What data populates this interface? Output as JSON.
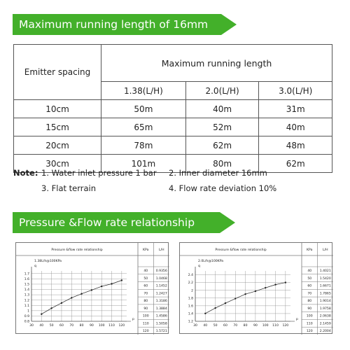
{
  "section1": {
    "title": "Maximum running length of 16mm",
    "table": {
      "spacing_header": "Emitter spacing",
      "group_header": "Maximum running length",
      "flow_headers": [
        "1.38(L/H)",
        "2.0(L/H)",
        "3.0(L/H)"
      ],
      "rows": [
        {
          "spacing": "10cm",
          "values": [
            "50m",
            "40m",
            "31m"
          ]
        },
        {
          "spacing": "15cm",
          "values": [
            "65m",
            "52m",
            "40m"
          ]
        },
        {
          "spacing": "20cm",
          "values": [
            "78m",
            "62m",
            "48m"
          ]
        },
        {
          "spacing": "30cm",
          "values": [
            "101m",
            "80m",
            "62m"
          ]
        }
      ]
    },
    "notes": {
      "label": "Note:",
      "items": [
        "1. Water inlet pressure 1 bar",
        "2. Inner diameter 16mm",
        "3. Flat terrain",
        "4. Flow rate deviation 10%"
      ]
    }
  },
  "section2": {
    "title": "Pressure &Flow rate relationship chart"
  },
  "colors": {
    "banner_green": "#43b02a",
    "line": "#222222"
  },
  "chart_data": [
    {
      "type": "line",
      "title": "Pressure &flow rate relationship",
      "subtitle": "1.38L/h@100KPa",
      "xlabel": "",
      "ylabel": "q",
      "x_axis_end_label": "p",
      "x_ticks": [
        "30",
        "40",
        "50",
        "60",
        "70",
        "80",
        "90",
        "100",
        "110",
        "120"
      ],
      "y_ticks": [
        "0.8",
        "0.9",
        "1",
        "1.1",
        "1.2",
        "1.3",
        "1.4",
        "1.5",
        "1.6",
        "1.7"
      ],
      "xlim": [
        30,
        125
      ],
      "ylim": [
        0.8,
        1.75
      ],
      "series": [
        {
          "values": [
            {
              "x": 40,
              "y": 0.9356
            },
            {
              "x": 50,
              "y": 1.0468
            },
            {
              "x": 60,
              "y": 1.1452
            },
            {
              "x": 70,
              "y": 1.2427
            },
            {
              "x": 80,
              "y": 1.3186
            },
            {
              "x": 90,
              "y": 1.3884
            },
            {
              "x": 100,
              "y": 1.4586
            },
            {
              "x": 110,
              "y": 1.5058
            },
            {
              "x": 120,
              "y": 1.5721
            }
          ]
        }
      ],
      "table_headers": [
        "KPa",
        "L/H"
      ],
      "table_rows": [
        [
          "40",
          "0.9356"
        ],
        [
          "50",
          "1.0468"
        ],
        [
          "60",
          "1.1452"
        ],
        [
          "70",
          "1.2427"
        ],
        [
          "80",
          "1.3186"
        ],
        [
          "90",
          "1.3884"
        ],
        [
          "100",
          "1.4586"
        ],
        [
          "110",
          "1.5058"
        ],
        [
          "120",
          "1.5721"
        ]
      ]
    },
    {
      "type": "line",
      "title": "Pressure &flow rate relationship",
      "subtitle": "2.0L/h@100KPa",
      "xlabel": "",
      "ylabel": "q",
      "x_axis_end_label": "p",
      "x_ticks": [
        "30",
        "40",
        "50",
        "60",
        "70",
        "80",
        "90",
        "100",
        "110",
        "120"
      ],
      "y_ticks": [
        "1.2",
        "1.4",
        "1.6",
        "1.8",
        "2",
        "2.2",
        "2.4"
      ],
      "xlim": [
        30,
        125
      ],
      "ylim": [
        1.2,
        2.5
      ],
      "series": [
        {
          "values": [
            {
              "x": 40,
              "y": 1.4021
            },
            {
              "x": 50,
              "y": 1.542
            },
            {
              "x": 60,
              "y": 1.6671
            },
            {
              "x": 70,
              "y": 1.7865
            },
            {
              "x": 80,
              "y": 1.9014
            },
            {
              "x": 90,
              "y": 1.9758
            },
            {
              "x": 100,
              "y": 2.0638
            },
            {
              "x": 110,
              "y": 2.1459
            },
            {
              "x": 120,
              "y": 2.2004
            }
          ]
        }
      ],
      "table_headers": [
        "KPa",
        "L/H"
      ],
      "table_rows": [
        [
          "40",
          "1.4021"
        ],
        [
          "50",
          "1.5420"
        ],
        [
          "60",
          "1.6671"
        ],
        [
          "70",
          "1.7865"
        ],
        [
          "80",
          "1.9014"
        ],
        [
          "90",
          "1.9758"
        ],
        [
          "100",
          "2.0638"
        ],
        [
          "110",
          "2.1459"
        ],
        [
          "120",
          "2.2004"
        ]
      ]
    }
  ]
}
